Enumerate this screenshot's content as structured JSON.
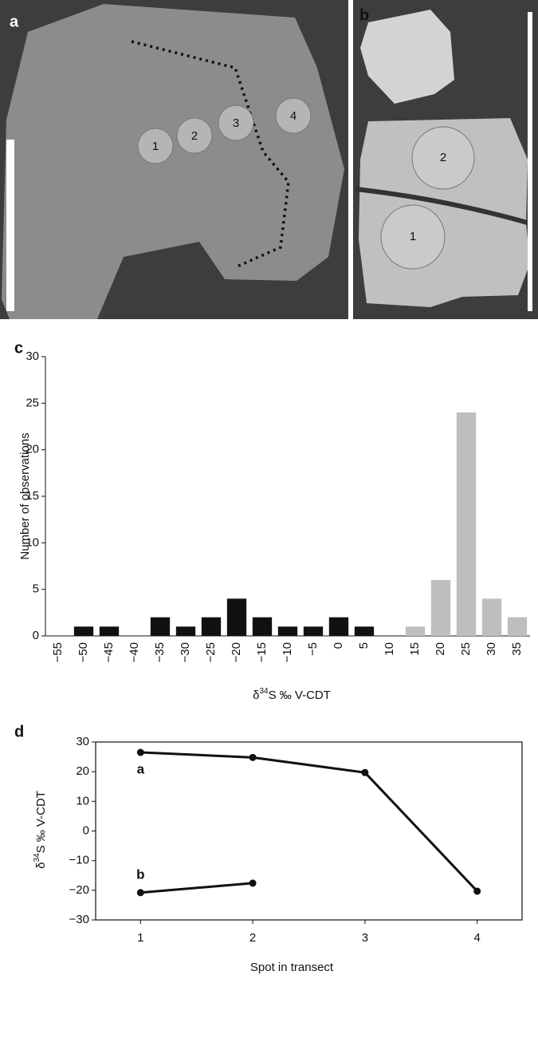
{
  "panels": [
    {
      "label": "a",
      "spots": [
        "1",
        "2",
        "3",
        "4"
      ]
    },
    {
      "label": "b",
      "spots": [
        "1",
        "2"
      ]
    }
  ],
  "chart_data": [
    {
      "type": "bar",
      "panel_label": "c",
      "categories": [
        "−55",
        "−50",
        "−45",
        "−40",
        "−35",
        "−30",
        "−25",
        "−20",
        "−15",
        "−10",
        "−5",
        "0",
        "5",
        "10",
        "15",
        "20",
        "25",
        "30",
        "35"
      ],
      "values": [
        0,
        1,
        1,
        0,
        2,
        1,
        2,
        4,
        2,
        1,
        1,
        2,
        1,
        0,
        1,
        6,
        24,
        4,
        2
      ],
      "colors": [
        "#111111",
        "#111111",
        "#111111",
        "#111111",
        "#111111",
        "#111111",
        "#111111",
        "#111111",
        "#111111",
        "#111111",
        "#111111",
        "#111111",
        "#111111",
        "#111111",
        "#bcbec0",
        "#bcbec0",
        "#bcbec0",
        "#bcbec0",
        "#bcbec0"
      ],
      "ylim": [
        0,
        30
      ],
      "yticks": [
        0,
        5,
        10,
        15,
        20,
        25,
        30
      ],
      "y_label": "Number of observations",
      "x_label": {
        "prefix": "δ",
        "sup": "34",
        "suffix": "S ‰ V-CDT"
      }
    },
    {
      "type": "line",
      "panel_label": "d",
      "series": [
        {
          "name": "a",
          "color": "#111111",
          "x": [
            1,
            2,
            3,
            4
          ],
          "values": [
            26.5,
            24.8,
            19.7,
            -20.3
          ]
        },
        {
          "name": "b",
          "color": "#111111",
          "x": [
            1,
            2
          ],
          "values": [
            -20.8,
            -17.6
          ]
        }
      ],
      "xlim": [
        0.6,
        4.4
      ],
      "xticks": [
        1,
        2,
        3,
        4
      ],
      "ylim": [
        -30,
        30
      ],
      "yticks": [
        {
          "value": -30,
          "label": "−30"
        },
        {
          "value": -20,
          "label": "−20"
        },
        {
          "value": -10,
          "label": "−10"
        },
        0,
        10,
        20,
        30
      ],
      "x_label": "Spot in transect",
      "y_label": {
        "prefix": "δ",
        "sup": "34",
        "suffix": "S ‰ V-CDT"
      }
    }
  ]
}
